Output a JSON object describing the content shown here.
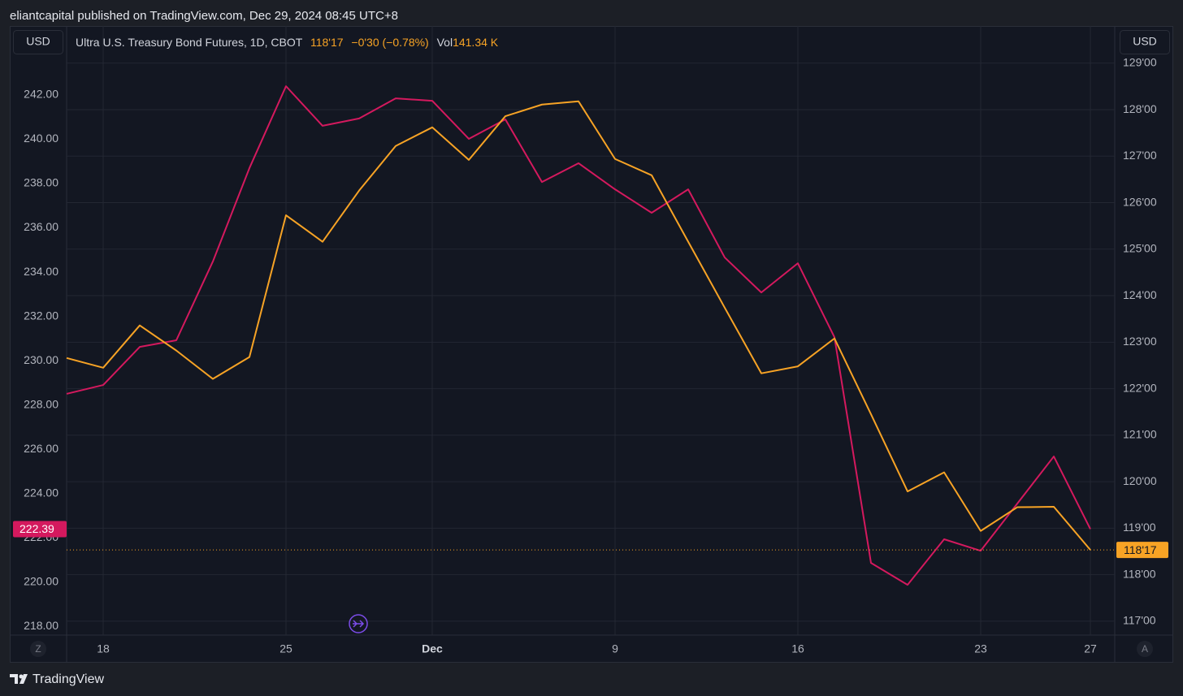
{
  "header": {
    "published": "eliantcapital published on TradingView.com, Dec 29, 2024 08:45 UTC+8"
  },
  "controls": {
    "left_currency": "USD",
    "right_currency": "USD",
    "zoom_button": "Z",
    "auto_button": "A"
  },
  "footer": {
    "brand": "TradingView"
  },
  "chart_data": {
    "type": "line",
    "legend": {
      "symbol": "Ultra U.S. Treasury Bond Futures, 1D, CBOT",
      "last": "118'17",
      "change": "−0'30 (−0.78%)",
      "volume_label": "Vol",
      "volume": "141.34 K"
    },
    "categories": [
      null,
      "18",
      null,
      null,
      null,
      null,
      "25",
      null,
      null,
      null,
      "Dec",
      null,
      null,
      null,
      null,
      "9",
      null,
      null,
      null,
      null,
      "16",
      null,
      null,
      null,
      null,
      "23",
      null,
      null,
      "27"
    ],
    "series": [
      {
        "name": "Ultra U.S. Treasury Bond Futures, 1D, CBOT",
        "color": "#f7a325",
        "axis": "y2",
        "values": [
          122.66,
          122.45,
          123.36,
          122.82,
          122.21,
          122.68,
          125.73,
          125.16,
          126.26,
          127.22,
          127.62,
          126.92,
          127.86,
          128.11,
          128.18,
          126.94,
          126.59,
          125.16,
          123.74,
          122.33,
          122.48,
          123.08,
          121.45,
          119.79,
          120.2,
          118.94,
          119.45,
          119.46,
          118.53125
        ],
        "value_labels": [
          null,
          null,
          null,
          null,
          null,
          null,
          null,
          null,
          null,
          null,
          null,
          null,
          null,
          null,
          null,
          null,
          null,
          null,
          null,
          null,
          null,
          null,
          null,
          null,
          null,
          null,
          null,
          null,
          "118'17"
        ]
      },
      {
        "color": "#d4195e",
        "axis": "y",
        "values": [
          228.5,
          228.9,
          230.62,
          230.92,
          234.48,
          238.7,
          242.4,
          240.61,
          240.94,
          241.85,
          241.74,
          240.02,
          240.9,
          238.07,
          238.92,
          237.74,
          236.68,
          237.74,
          234.66,
          233.08,
          234.4,
          231.06,
          220.86,
          219.87,
          221.93,
          221.41,
          223.54,
          225.67,
          222.39
        ]
      }
    ],
    "ylim": [
      217.6,
      245.12
    ],
    "yticks": [
      {
        "value": 218,
        "label": "218.00"
      },
      {
        "value": 220,
        "label": "220.00"
      },
      {
        "value": 222,
        "label": "222.00"
      },
      {
        "value": 224,
        "label": "224.00"
      },
      {
        "value": 226,
        "label": "226.00"
      },
      {
        "value": 228,
        "label": "228.00"
      },
      {
        "value": 230,
        "label": "230.00"
      },
      {
        "value": 232,
        "label": "232.00"
      },
      {
        "value": 234,
        "label": "234.00"
      },
      {
        "value": 236,
        "label": "236.00"
      },
      {
        "value": 238,
        "label": "238.00"
      },
      {
        "value": 240,
        "label": "240.00"
      },
      {
        "value": 242,
        "label": "242.00"
      }
    ],
    "y2lim": [
      116.7,
      129.8
    ],
    "y2ticks": [
      {
        "value": 117,
        "label": "117'00"
      },
      {
        "value": 118,
        "label": "118'00"
      },
      {
        "value": 119,
        "label": "119'00"
      },
      {
        "value": 120,
        "label": "120'00"
      },
      {
        "value": 121,
        "label": "121'00"
      },
      {
        "value": 122,
        "label": "122'00"
      },
      {
        "value": 123,
        "label": "123'00"
      },
      {
        "value": 124,
        "label": "124'00"
      },
      {
        "value": 125,
        "label": "125'00"
      },
      {
        "value": 126,
        "label": "126'00"
      },
      {
        "value": 127,
        "label": "127'00"
      },
      {
        "value": 128,
        "label": "128'00"
      },
      {
        "value": 129,
        "label": "129'00"
      }
    ],
    "grid": true
  }
}
